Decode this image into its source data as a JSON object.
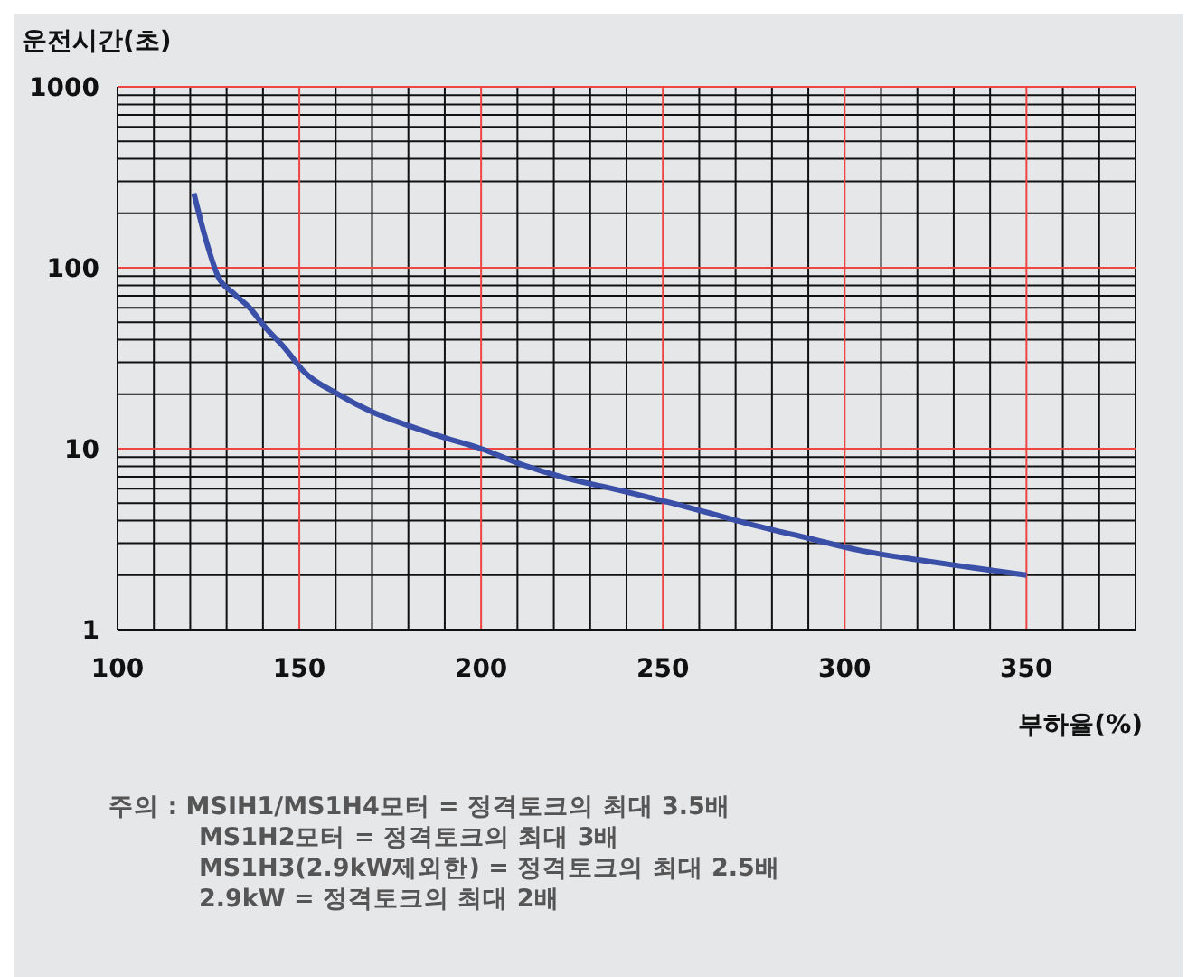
{
  "chart_data": {
    "type": "line",
    "xlabel": "부하율(%)",
    "ylabel": "운전시간(초)",
    "x": [
      121,
      124,
      127.6,
      132,
      136,
      141,
      146,
      151,
      160.7,
      170,
      181,
      190,
      200,
      211,
      223,
      238,
      252.5,
      263,
      274.6,
      290,
      303.8,
      322,
      335,
      350
    ],
    "series": [
      {
        "color": "#3a50a8",
        "values": [
          258,
          150,
          90,
          72,
          61,
          46,
          36,
          27,
          20,
          16,
          13.2,
          11.5,
          10,
          8.2,
          6.9,
          5.9,
          5.0,
          4.4,
          3.8,
          3.2,
          2.75,
          2.4,
          2.2,
          2.0
        ]
      }
    ],
    "xlim": [
      100,
      380
    ],
    "xticks": [
      100,
      {
        "value": 110,
        "label": null
      },
      {
        "value": 120,
        "label": null
      },
      {
        "value": 130,
        "label": null
      },
      {
        "value": 140,
        "label": null
      },
      150,
      {
        "value": 160,
        "label": null
      },
      {
        "value": 170,
        "label": null
      },
      {
        "value": 180,
        "label": null
      },
      {
        "value": 190,
        "label": null
      },
      200,
      {
        "value": 210,
        "label": null
      },
      {
        "value": 220,
        "label": null
      },
      {
        "value": 230,
        "label": null
      },
      {
        "value": 240,
        "label": null
      },
      250,
      {
        "value": 260,
        "label": null
      },
      {
        "value": 270,
        "label": null
      },
      {
        "value": 280,
        "label": null
      },
      {
        "value": 290,
        "label": null
      },
      300,
      {
        "value": 310,
        "label": null
      },
      {
        "value": 320,
        "label": null
      },
      {
        "value": 330,
        "label": null
      },
      {
        "value": 340,
        "label": null
      },
      350,
      {
        "value": 360,
        "label": null
      },
      {
        "value": 370,
        "label": null
      },
      {
        "value": 380,
        "label": null
      }
    ],
    "ylim": [
      1,
      1000
    ],
    "log": "y",
    "yticks": [
      1,
      {
        "value": 2,
        "label": null
      },
      {
        "value": 3,
        "label": null
      },
      {
        "value": 4,
        "label": null
      },
      {
        "value": 5,
        "label": null
      },
      {
        "value": 6,
        "label": null
      },
      {
        "value": 7,
        "label": null
      },
      {
        "value": 8,
        "label": null
      },
      {
        "value": 9,
        "label": null
      },
      10,
      {
        "value": 20,
        "label": null
      },
      {
        "value": 30,
        "label": null
      },
      {
        "value": 40,
        "label": null
      },
      {
        "value": 50,
        "label": null
      },
      {
        "value": 60,
        "label": null
      },
      {
        "value": 70,
        "label": null
      },
      {
        "value": 80,
        "label": null
      },
      {
        "value": 90,
        "label": null
      },
      100,
      {
        "value": 200,
        "label": null
      },
      {
        "value": 300,
        "label": null
      },
      {
        "value": 400,
        "label": null
      },
      {
        "value": 500,
        "label": null
      },
      {
        "value": 600,
        "label": null
      },
      {
        "value": 700,
        "label": null
      },
      {
        "value": 800,
        "label": null
      },
      {
        "value": 900,
        "label": null
      },
      1000
    ],
    "grid": true,
    "marker": "none",
    "line_style": "solid",
    "annotations": [
      "주의 : MSIH1/MS1H4모터 = 정격토크의 최대 3.5배",
      "MS1H2모터 = 정격토크의 최대 3배",
      "MS1H3(2.9kW제외한) = 정격토크의 최대 2.5배",
      "2.9kW = 정격토크의 최대 2배"
    ]
  }
}
